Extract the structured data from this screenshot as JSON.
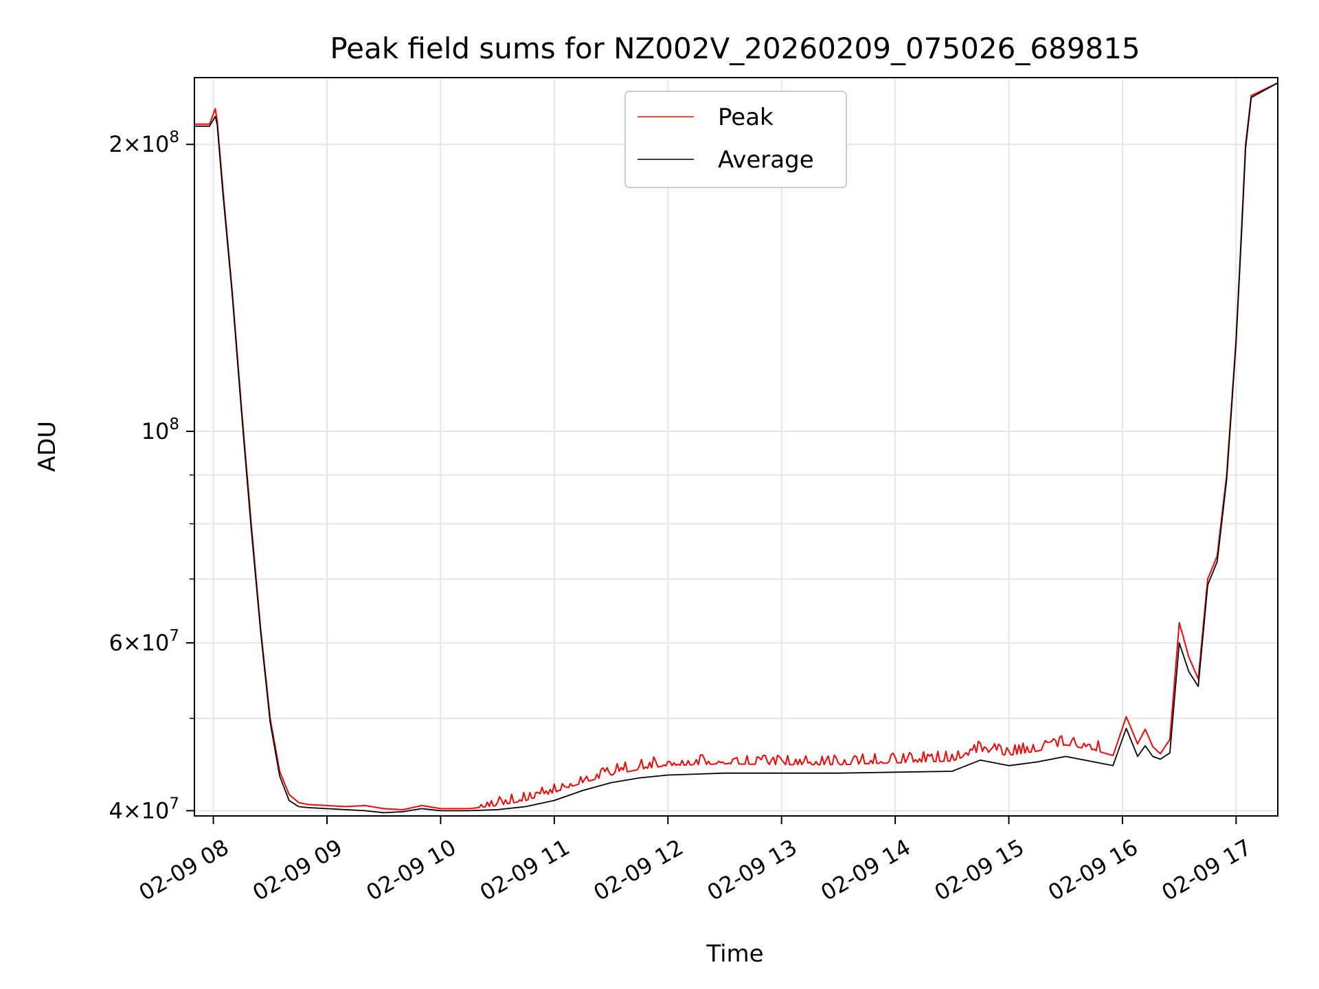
{
  "chart_data": {
    "type": "line",
    "title": "Peak field sums for NZ002V_20260209_075026_689815",
    "xlabel": "Time",
    "ylabel": "ADU",
    "yscale": "log",
    "grid": true,
    "legend_position": "top-center",
    "xlim": [
      "2026-02-09 07:50",
      "2026-02-09 17:22"
    ],
    "ylim": [
      39500000,
      235000000
    ],
    "x_ticks": [
      {
        "t": "2026-02-09 08:00",
        "label": "02-09 08"
      },
      {
        "t": "2026-02-09 09:00",
        "label": "02-09 09"
      },
      {
        "t": "2026-02-09 10:00",
        "label": "02-09 10"
      },
      {
        "t": "2026-02-09 11:00",
        "label": "02-09 11"
      },
      {
        "t": "2026-02-09 12:00",
        "label": "02-09 12"
      },
      {
        "t": "2026-02-09 13:00",
        "label": "02-09 13"
      },
      {
        "t": "2026-02-09 14:00",
        "label": "02-09 14"
      },
      {
        "t": "2026-02-09 15:00",
        "label": "02-09 15"
      },
      {
        "t": "2026-02-09 16:00",
        "label": "02-09 16"
      },
      {
        "t": "2026-02-09 17:00",
        "label": "02-09 17"
      }
    ],
    "y_ticks": [
      {
        "value": 40000000,
        "mantissa": "4",
        "exponent": "7"
      },
      {
        "value": 60000000,
        "mantissa": "6",
        "exponent": "7"
      },
      {
        "value": 100000000,
        "mantissa": "",
        "exponent": "8"
      },
      {
        "value": 200000000,
        "mantissa": "2",
        "exponent": "8"
      }
    ],
    "y_tick_base": "10",
    "y_tick_times": "×",
    "y_minor_ticks": [
      50000000,
      70000000,
      80000000,
      90000000
    ],
    "series": [
      {
        "name": "Peak",
        "color": "#ff0000",
        "x": [
          "2026-02-09 07:50",
          "2026-02-09 07:58",
          "2026-02-09 08:01",
          "2026-02-09 08:02",
          "2026-02-09 08:05",
          "2026-02-09 08:10",
          "2026-02-09 08:15",
          "2026-02-09 08:20",
          "2026-02-09 08:25",
          "2026-02-09 08:30",
          "2026-02-09 08:35",
          "2026-02-09 08:40",
          "2026-02-09 08:45",
          "2026-02-09 08:50",
          "2026-02-09 09:00",
          "2026-02-09 09:10",
          "2026-02-09 09:20",
          "2026-02-09 09:30",
          "2026-02-09 09:40",
          "2026-02-09 09:50",
          "2026-02-09 10:00",
          "2026-02-09 10:15",
          "2026-02-09 10:30",
          "2026-02-09 10:45",
          "2026-02-09 11:00",
          "2026-02-09 11:15",
          "2026-02-09 11:30",
          "2026-02-09 11:45",
          "2026-02-09 12:00",
          "2026-02-09 12:30",
          "2026-02-09 13:00",
          "2026-02-09 13:30",
          "2026-02-09 14:00",
          "2026-02-09 14:30",
          "2026-02-09 14:45",
          "2026-02-09 15:00",
          "2026-02-09 15:15",
          "2026-02-09 15:30",
          "2026-02-09 15:45",
          "2026-02-09 15:55",
          "2026-02-09 16:02",
          "2026-02-09 16:08",
          "2026-02-09 16:12",
          "2026-02-09 16:16",
          "2026-02-09 16:20",
          "2026-02-09 16:25",
          "2026-02-09 16:30",
          "2026-02-09 16:35",
          "2026-02-09 16:40",
          "2026-02-09 16:45",
          "2026-02-09 16:50",
          "2026-02-09 16:55",
          "2026-02-09 17:00",
          "2026-02-09 17:03",
          "2026-02-09 17:05",
          "2026-02-09 17:08",
          "2026-02-09 17:22"
        ],
        "values": [
          210000000,
          210000000,
          218000000,
          212000000,
          180000000,
          140000000,
          105000000,
          80000000,
          62000000,
          50000000,
          44000000,
          41600000,
          40800000,
          40600000,
          40500000,
          40400000,
          40500000,
          40200000,
          40100000,
          40500000,
          40200000,
          40200000,
          40500000,
          41000000,
          41800000,
          42800000,
          43600000,
          44200000,
          44600000,
          44800000,
          44700000,
          44700000,
          44900000,
          45100000,
          46200000,
          45700000,
          46200000,
          46900000,
          46300000,
          45700000,
          50200000,
          47000000,
          48700000,
          46700000,
          45900000,
          47500000,
          63000000,
          58000000,
          55000000,
          70000000,
          74000000,
          90000000,
          125000000,
          165000000,
          200000000,
          225000000,
          232000000
        ]
      },
      {
        "name": "Average",
        "color": "#000000",
        "x": [
          "2026-02-09 07:50",
          "2026-02-09 07:58",
          "2026-02-09 08:01",
          "2026-02-09 08:02",
          "2026-02-09 08:05",
          "2026-02-09 08:10",
          "2026-02-09 08:15",
          "2026-02-09 08:20",
          "2026-02-09 08:25",
          "2026-02-09 08:30",
          "2026-02-09 08:35",
          "2026-02-09 08:40",
          "2026-02-09 08:45",
          "2026-02-09 08:50",
          "2026-02-09 09:00",
          "2026-02-09 09:10",
          "2026-02-09 09:20",
          "2026-02-09 09:30",
          "2026-02-09 09:40",
          "2026-02-09 09:50",
          "2026-02-09 10:00",
          "2026-02-09 10:15",
          "2026-02-09 10:30",
          "2026-02-09 10:45",
          "2026-02-09 11:00",
          "2026-02-09 11:15",
          "2026-02-09 11:30",
          "2026-02-09 11:45",
          "2026-02-09 12:00",
          "2026-02-09 12:30",
          "2026-02-09 13:00",
          "2026-02-09 13:30",
          "2026-02-09 14:00",
          "2026-02-09 14:30",
          "2026-02-09 14:45",
          "2026-02-09 15:00",
          "2026-02-09 15:15",
          "2026-02-09 15:30",
          "2026-02-09 15:45",
          "2026-02-09 15:55",
          "2026-02-09 16:02",
          "2026-02-09 16:08",
          "2026-02-09 16:12",
          "2026-02-09 16:16",
          "2026-02-09 16:20",
          "2026-02-09 16:25",
          "2026-02-09 16:30",
          "2026-02-09 16:35",
          "2026-02-09 16:40",
          "2026-02-09 16:45",
          "2026-02-09 16:50",
          "2026-02-09 16:55",
          "2026-02-09 17:00",
          "2026-02-09 17:03",
          "2026-02-09 17:05",
          "2026-02-09 17:08",
          "2026-02-09 17:22"
        ],
        "values": [
          209000000,
          209000000,
          214000000,
          210000000,
          178000000,
          139000000,
          104000000,
          79000000,
          61500000,
          49500000,
          43500000,
          41000000,
          40400000,
          40300000,
          40200000,
          40100000,
          40000000,
          39800000,
          39900000,
          40200000,
          40000000,
          40000000,
          40100000,
          40400000,
          41000000,
          42000000,
          42800000,
          43300000,
          43600000,
          43800000,
          43800000,
          43800000,
          43900000,
          44000000,
          45200000,
          44600000,
          45000000,
          45600000,
          45000000,
          44600000,
          48800000,
          45600000,
          46800000,
          45600000,
          45300000,
          46000000,
          60000000,
          56000000,
          54000000,
          69000000,
          73000000,
          89000000,
          124000000,
          163000000,
          198000000,
          224000000,
          232000000
        ]
      }
    ]
  }
}
